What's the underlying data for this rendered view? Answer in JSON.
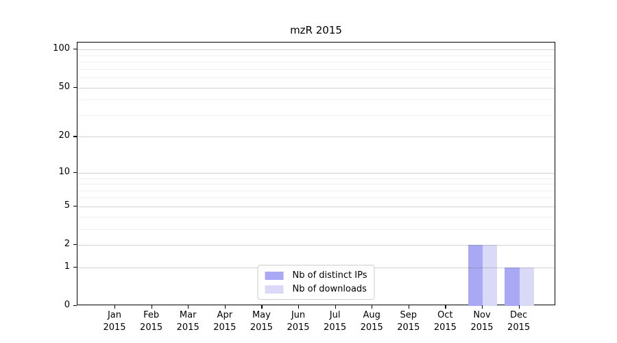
{
  "chart_data": {
    "type": "bar",
    "title": "mzR 2015",
    "xlabel": "",
    "ylabel": "",
    "scale": "log1p",
    "grid": "on",
    "legend_position": "lower center",
    "ylim": [
      0,
      113
    ],
    "categories": [
      {
        "month": "Jan",
        "year": "2015"
      },
      {
        "month": "Feb",
        "year": "2015"
      },
      {
        "month": "Mar",
        "year": "2015"
      },
      {
        "month": "Apr",
        "year": "2015"
      },
      {
        "month": "May",
        "year": "2015"
      },
      {
        "month": "Jun",
        "year": "2015"
      },
      {
        "month": "Jul",
        "year": "2015"
      },
      {
        "month": "Aug",
        "year": "2015"
      },
      {
        "month": "Sep",
        "year": "2015"
      },
      {
        "month": "Oct",
        "year": "2015"
      },
      {
        "month": "Nov",
        "year": "2015"
      },
      {
        "month": "Dec",
        "year": "2015"
      }
    ],
    "series": [
      {
        "name": "Nb of distinct IPs",
        "color": "#a8a8f5",
        "values": [
          0,
          0,
          0,
          0,
          0,
          0,
          0,
          0,
          0,
          0,
          2,
          1
        ]
      },
      {
        "name": "Nb of downloads",
        "color": "#dadaf8",
        "values": [
          0,
          0,
          0,
          0,
          0,
          0,
          0,
          0,
          0,
          0,
          2,
          1
        ]
      }
    ],
    "yticks": [
      0,
      1,
      2,
      5,
      10,
      20,
      50,
      100
    ],
    "minor_gridlines": [
      3,
      4,
      6,
      7,
      8,
      9,
      30,
      40,
      60,
      70,
      80,
      90
    ]
  },
  "colors": {
    "background": "#ffffff",
    "axis": "#000000",
    "major_grid": "#d3d3d3",
    "minor_grid": "#efefef",
    "legend_border": "#cccccc",
    "text": "#000000"
  }
}
